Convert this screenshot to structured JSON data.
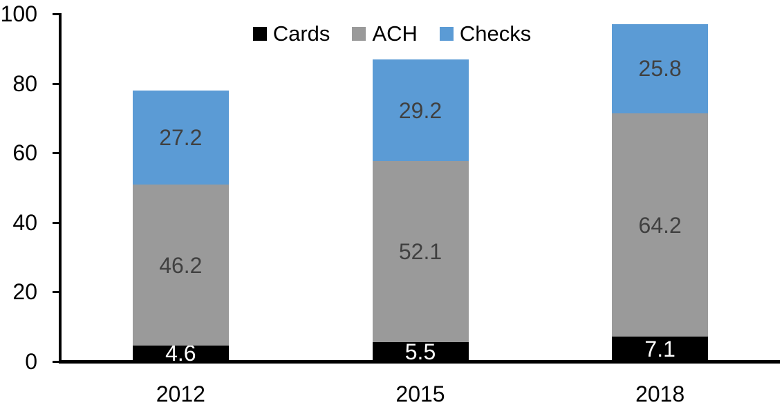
{
  "chart_data": {
    "type": "bar",
    "stacked": true,
    "title": "",
    "xlabel": "",
    "ylabel": "",
    "categories": [
      "2012",
      "2015",
      "2018"
    ],
    "series": [
      {
        "name": "Cards",
        "color": "#000000",
        "label_color": "#ffffff",
        "values": [
          4.6,
          5.5,
          7.1
        ]
      },
      {
        "name": "ACH",
        "color": "#9a9a9a",
        "label_color": "#404040",
        "values": [
          46.2,
          52.1,
          64.2
        ]
      },
      {
        "name": "Checks",
        "color": "#5b9bd5",
        "label_color": "#404040",
        "values": [
          27.2,
          29.2,
          25.8
        ]
      }
    ],
    "totals": [
      78.0,
      86.8,
      97.1
    ],
    "ylim": [
      0,
      100
    ],
    "yticks": [
      0,
      20,
      40,
      60,
      80,
      100
    ],
    "grid": false,
    "legend_position": "top",
    "axis_color": "#000000"
  }
}
